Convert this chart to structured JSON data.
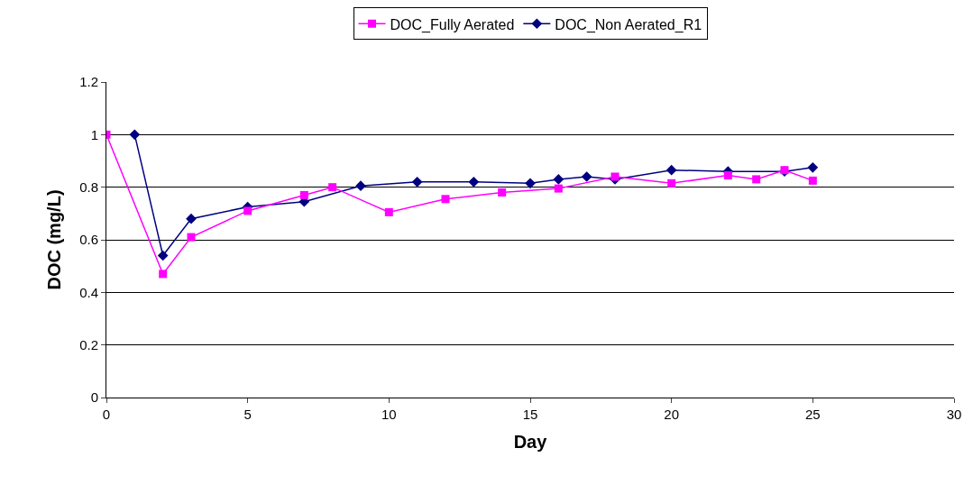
{
  "chart_data": {
    "type": "line",
    "xlabel": "Day",
    "ylabel": "DOC (mg/L)",
    "xlim": [
      0,
      30
    ],
    "xticks": [
      0,
      5,
      10,
      15,
      20,
      25,
      30
    ],
    "ylim": [
      0,
      1.2
    ],
    "yticks": [
      0,
      0.2,
      0.4,
      0.6,
      0.8,
      1,
      1.2
    ],
    "grid": "y",
    "legend": "top",
    "line_style": "solid",
    "series": [
      {
        "name": "DOC_Fully Aerated",
        "color": "#ff00ff",
        "marker": "square",
        "x": [
          0,
          2,
          3,
          5,
          7,
          8,
          10,
          12,
          14,
          16,
          18,
          20,
          22,
          23,
          24,
          25
        ],
        "values": [
          1.0,
          0.47,
          0.61,
          0.71,
          0.77,
          0.8,
          0.705,
          0.755,
          0.78,
          0.795,
          0.84,
          0.815,
          0.845,
          0.83,
          0.865,
          0.825
        ]
      },
      {
        "name": "DOC_Non Aerated_R1",
        "color": "#000080",
        "marker": "diamond",
        "x": [
          1,
          2,
          3,
          5,
          7,
          9,
          11,
          13,
          15,
          16,
          17,
          18,
          20,
          22,
          24,
          25
        ],
        "values": [
          1.0,
          0.54,
          0.68,
          0.725,
          0.745,
          0.805,
          0.82,
          0.82,
          0.815,
          0.83,
          0.84,
          0.83,
          0.865,
          0.86,
          0.86,
          0.875
        ]
      }
    ]
  }
}
